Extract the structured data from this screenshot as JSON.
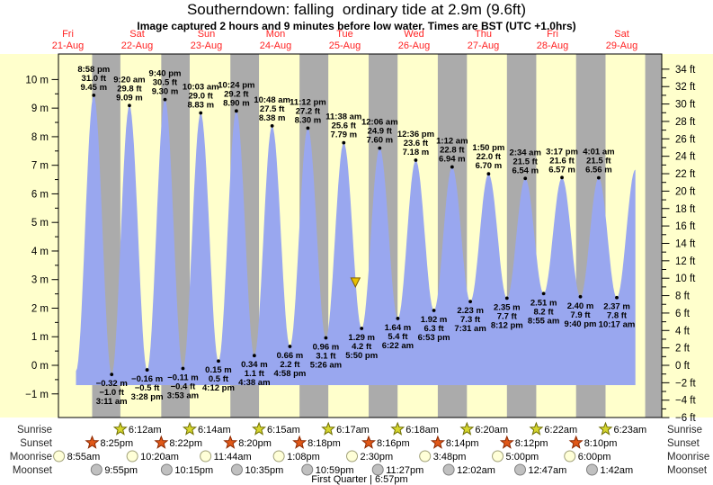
{
  "title": "Southerndown: falling  ordinary tide at 2.9m (9.6ft)",
  "subtitle": "Image captured 2 hours and 9 minutes before low water. Times are BST (UTC +1.0hrs)",
  "chart_data": {
    "type": "area",
    "title": "Southerndown: falling  ordinary tide at 2.9m (9.6ft)",
    "subtitle": "Image captured 2 hours and 9 minutes before low water. Times are BST (UTC +1.0hrs)",
    "x_axis": {
      "days": [
        {
          "dow": "Fri",
          "date": "21-Aug"
        },
        {
          "dow": "Sat",
          "date": "22-Aug"
        },
        {
          "dow": "Sun",
          "date": "23-Aug"
        },
        {
          "dow": "Mon",
          "date": "24-Aug"
        },
        {
          "dow": "Tue",
          "date": "25-Aug"
        },
        {
          "dow": "Wed",
          "date": "26-Aug"
        },
        {
          "dow": "Thu",
          "date": "27-Aug"
        },
        {
          "dow": "Fri",
          "date": "28-Aug"
        },
        {
          "dow": "Sat",
          "date": "29-Aug"
        }
      ]
    },
    "y_axis_left": {
      "unit": "m",
      "min": -1,
      "max": 10,
      "labeled_step": 1,
      "minor_step": 0.5
    },
    "y_axis_right": {
      "unit": "ft",
      "min": -6,
      "max": 34,
      "labeled_step": 2,
      "minor_step": 1
    },
    "current_level_marker": {
      "height_m": 2.9,
      "height_ft": 9.6,
      "state": "falling"
    },
    "tides": [
      {
        "type": "high",
        "day": 0,
        "time": "8:58 pm",
        "ft": 31.0,
        "m": 9.45
      },
      {
        "type": "low",
        "day": 1,
        "time": "3:11 am",
        "ft": -1.0,
        "m": -0.32
      },
      {
        "type": "high",
        "day": 1,
        "time": "9:20 am",
        "ft": 29.8,
        "m": 9.09
      },
      {
        "type": "low",
        "day": 1,
        "time": "3:28 pm",
        "ft": -0.5,
        "m": -0.16
      },
      {
        "type": "high",
        "day": 1,
        "time": "9:40 pm",
        "ft": 30.5,
        "m": 9.3
      },
      {
        "type": "low",
        "day": 2,
        "time": "3:53 am",
        "ft": -0.4,
        "m": -0.11
      },
      {
        "type": "high",
        "day": 2,
        "time": "10:03 am",
        "ft": 29.0,
        "m": 8.83
      },
      {
        "type": "low",
        "day": 2,
        "time": "4:12 pm",
        "ft": 0.5,
        "m": 0.15
      },
      {
        "type": "high",
        "day": 2,
        "time": "10:24 pm",
        "ft": 29.2,
        "m": 8.9
      },
      {
        "type": "low",
        "day": 3,
        "time": "4:38 am",
        "ft": 1.1,
        "m": 0.34
      },
      {
        "type": "high",
        "day": 3,
        "time": "10:48 am",
        "ft": 27.5,
        "m": 8.38
      },
      {
        "type": "low",
        "day": 3,
        "time": "4:58 pm",
        "ft": 2.2,
        "m": 0.66
      },
      {
        "type": "high",
        "day": 3,
        "time": "11:12 pm",
        "ft": 27.2,
        "m": 8.3
      },
      {
        "type": "low",
        "day": 4,
        "time": "5:26 am",
        "ft": 3.1,
        "m": 0.96
      },
      {
        "type": "high",
        "day": 4,
        "time": "11:38 am",
        "ft": 25.6,
        "m": 7.79
      },
      {
        "type": "low",
        "day": 4,
        "time": "5:50 pm",
        "ft": 4.2,
        "m": 1.29
      },
      {
        "type": "high",
        "day": 5,
        "time": "12:06 am",
        "ft": 24.9,
        "m": 7.6
      },
      {
        "type": "low",
        "day": 5,
        "time": "6:22 am",
        "ft": 5.4,
        "m": 1.64
      },
      {
        "type": "high",
        "day": 5,
        "time": "12:36 pm",
        "ft": 23.6,
        "m": 7.18
      },
      {
        "type": "low",
        "day": 5,
        "time": "6:53 pm",
        "ft": 6.3,
        "m": 1.92
      },
      {
        "type": "high",
        "day": 6,
        "time": "1:12 am",
        "ft": 22.8,
        "m": 6.94
      },
      {
        "type": "low",
        "day": 6,
        "time": "7:31 am",
        "ft": 7.3,
        "m": 2.23
      },
      {
        "type": "high",
        "day": 6,
        "time": "1:50 pm",
        "ft": 22.0,
        "m": 6.7
      },
      {
        "type": "low",
        "day": 6,
        "time": "8:12 pm",
        "ft": 7.7,
        "m": 2.35
      },
      {
        "type": "high",
        "day": 7,
        "time": "2:34 am",
        "ft": 21.5,
        "m": 6.54
      },
      {
        "type": "low",
        "day": 7,
        "time": "8:55 am",
        "ft": 8.2,
        "m": 2.51
      },
      {
        "type": "high",
        "day": 7,
        "time": "3:17 pm",
        "ft": 21.6,
        "m": 6.57
      },
      {
        "type": "low",
        "day": 7,
        "time": "9:40 pm",
        "ft": 7.9,
        "m": 2.4
      },
      {
        "type": "high",
        "day": 8,
        "time": "4:01 am",
        "ft": 21.5,
        "m": 6.56
      },
      {
        "type": "low",
        "day": 8,
        "time": "10:17 am",
        "ft": 7.8,
        "m": 2.37
      }
    ],
    "sun_moon": {
      "rows": [
        {
          "name": "Sunrise",
          "icon": "sunrise-star",
          "events": [
            {
              "day": 1,
              "time": "6:12am"
            },
            {
              "day": 2,
              "time": "6:14am"
            },
            {
              "day": 3,
              "time": "6:15am"
            },
            {
              "day": 4,
              "time": "6:17am"
            },
            {
              "day": 5,
              "time": "6:18am"
            },
            {
              "day": 6,
              "time": "6:20am"
            },
            {
              "day": 7,
              "time": "6:22am"
            },
            {
              "day": 8,
              "time": "6:23am"
            }
          ]
        },
        {
          "name": "Sunset",
          "icon": "sunset-star",
          "events": [
            {
              "day": 0,
              "time": "8:25pm"
            },
            {
              "day": 1,
              "time": "8:22pm"
            },
            {
              "day": 2,
              "time": "8:20pm"
            },
            {
              "day": 3,
              "time": "8:18pm"
            },
            {
              "day": 4,
              "time": "8:16pm"
            },
            {
              "day": 5,
              "time": "8:14pm"
            },
            {
              "day": 6,
              "time": "8:12pm"
            },
            {
              "day": 7,
              "time": "8:10pm"
            }
          ]
        },
        {
          "name": "Moonrise",
          "icon": "moonrise-circle",
          "events": [
            {
              "day": 0,
              "time": "8:55am"
            },
            {
              "day": 1,
              "time": "10:20am"
            },
            {
              "day": 2,
              "time": "11:44am"
            },
            {
              "day": 3,
              "time": "1:08pm"
            },
            {
              "day": 4,
              "time": "2:30pm"
            },
            {
              "day": 5,
              "time": "3:48pm"
            },
            {
              "day": 6,
              "time": "5:00pm"
            },
            {
              "day": 7,
              "time": "6:00pm"
            }
          ]
        },
        {
          "name": "Moonset",
          "icon": "moonset-circle",
          "events": [
            {
              "day": 0,
              "time": "9:55pm"
            },
            {
              "day": 1,
              "time": "10:15pm"
            },
            {
              "day": 2,
              "time": "10:35pm"
            },
            {
              "day": 3,
              "time": "10:59pm"
            },
            {
              "day": 4,
              "time": "11:27pm"
            },
            {
              "day": 6,
              "time": "12:02am"
            },
            {
              "day": 7,
              "time": "12:47am"
            },
            {
              "day": 8,
              "time": "1:42am"
            }
          ]
        }
      ],
      "footer": "First Quarter | 6:57pm"
    },
    "colors": {
      "day_background": "#ffffcc",
      "night_band": "#ababab",
      "tide_fill": "#99a7ef",
      "date_label": "#ff2222",
      "sunrise_star": "#d6d62e",
      "sunrise_star_edge": "#6e6e00",
      "sunset_star": "#e05818",
      "sunset_star_edge": "#8c2800",
      "moonrise_fill": "#ffffd8",
      "moonrise_edge": "#a0a078",
      "moonset_fill": "#c0c0c0",
      "moonset_edge": "#808080",
      "marker": "#e8c000",
      "marker_edge": "#806000",
      "text": "#000000",
      "row_label": "#2a2a2a"
    }
  }
}
